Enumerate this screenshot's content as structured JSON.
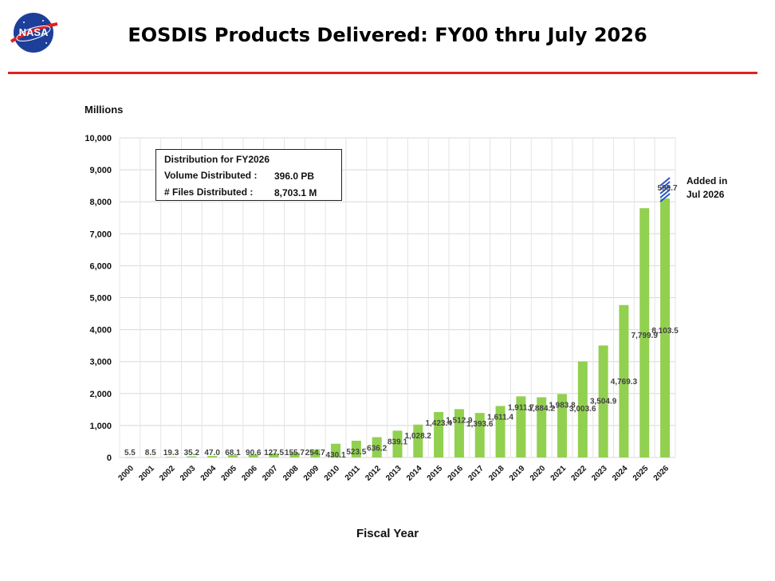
{
  "page": {
    "title": "EOSDIS Products Delivered: FY00 thru July 2026",
    "logo_text": "NASA",
    "brand_colors": {
      "rule": "#e02020",
      "bar": "#92d050",
      "recent_hatch": "#2a55c8"
    }
  },
  "annotation": {
    "added_line1": "Added in",
    "added_line2": "Jul 2026",
    "added_value": "599.7"
  },
  "legend_box": {
    "heading": "Distribution for FY2026",
    "rows": [
      {
        "label": "Volume Distributed :",
        "value": "396.0 PB"
      },
      {
        "label": "# Files Distributed :",
        "value": "8,703.1 M"
      }
    ]
  },
  "chart_data": {
    "type": "bar",
    "title": "EOSDIS Products Delivered: FY00 thru July 2026",
    "ylabel": "Millions",
    "xlabel": "Fiscal Year",
    "ylim": [
      0,
      10000
    ],
    "yticks": [
      "0",
      "1,000",
      "2,000",
      "3,000",
      "4,000",
      "5,000",
      "6,000",
      "7,000",
      "8,000",
      "9,000",
      "10,000"
    ],
    "grid": true,
    "categories": [
      "2000",
      "2001",
      "2002",
      "2003",
      "2004",
      "2005",
      "2006",
      "2007",
      "2008",
      "2009",
      "2010",
      "2011",
      "2012",
      "2013",
      "2014",
      "2015",
      "2016",
      "2017",
      "2018",
      "2019",
      "2020",
      "2021",
      "2022",
      "2023",
      "2024",
      "2025",
      "2026"
    ],
    "values": [
      5.5,
      8.5,
      19.3,
      35.2,
      47.0,
      68.1,
      90.6,
      127.5,
      155.7,
      254.7,
      430.1,
      523.5,
      636.2,
      839.1,
      1028.2,
      1423.4,
      1512.9,
      1393.6,
      1611.4,
      1911.7,
      1884.2,
      1983.8,
      3003.6,
      3504.9,
      4769.3,
      7799.9,
      8103.5
    ],
    "labels": [
      "5.5",
      "8.5",
      "19.3",
      "35.2",
      "47.0",
      "68.1",
      "90.6",
      "127.5",
      "155.7",
      "254.7",
      "430.1",
      "523.5",
      "636.2",
      "839.1",
      "1,028.2",
      "1,423.4",
      "1,512.9",
      "1,393.6",
      "1,611.4",
      "1,911.7",
      "1,884.2",
      "1,983.8",
      "3,003.6",
      "3,504.9",
      "4,769.3",
      "7,799.9",
      "8,103.5"
    ],
    "recent_addition": {
      "category": "2026",
      "value": 599.7,
      "label": "599.7"
    }
  }
}
